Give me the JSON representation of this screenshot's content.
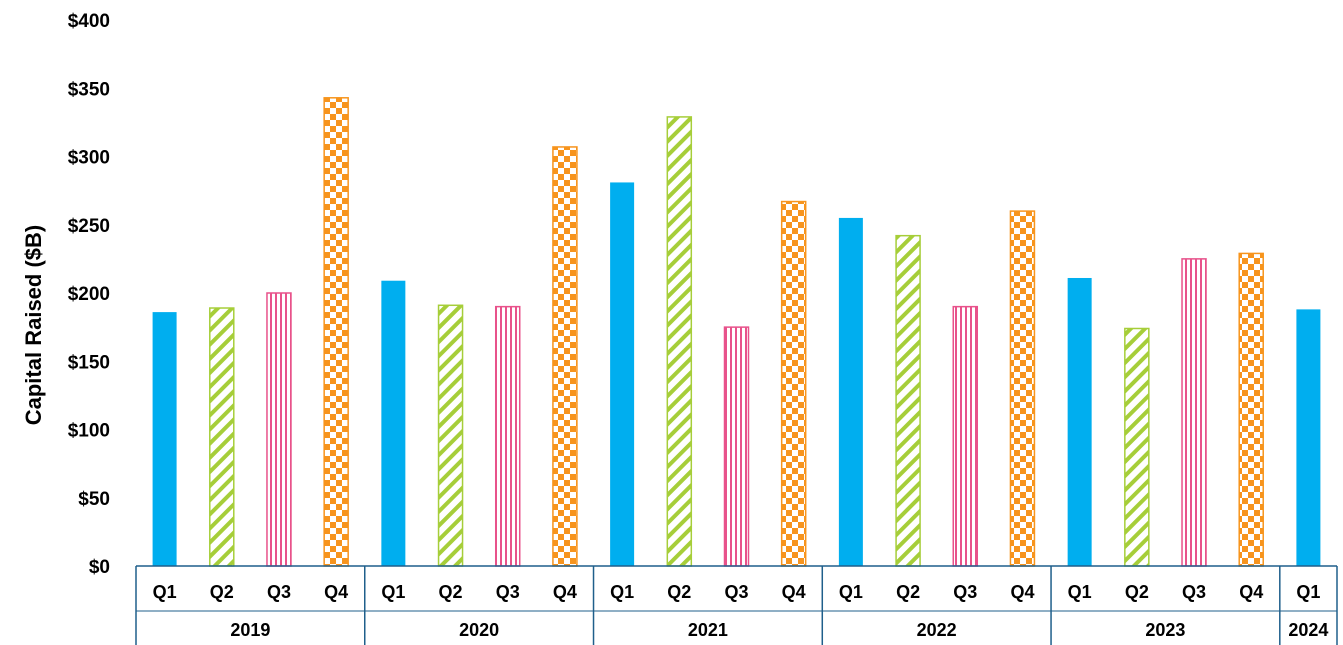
{
  "chart_data": {
    "type": "bar",
    "title": "",
    "xlabel": "",
    "ylabel": "Capital Raised ($B)",
    "ylim": [
      0,
      400
    ],
    "yticks": [
      "$0",
      "$50",
      "$100",
      "$150",
      "$200",
      "$250",
      "$300",
      "$350",
      "$400"
    ],
    "grid": false,
    "legend": "none",
    "groups": [
      {
        "label": "2019",
        "categories": [
          "Q1",
          "Q2",
          "Q3",
          "Q4"
        ],
        "values": [
          186,
          189,
          200,
          343
        ]
      },
      {
        "label": "2020",
        "categories": [
          "Q1",
          "Q2",
          "Q3",
          "Q4"
        ],
        "values": [
          209,
          191,
          190,
          307
        ]
      },
      {
        "label": "2021",
        "categories": [
          "Q1",
          "Q2",
          "Q3",
          "Q4"
        ],
        "values": [
          281,
          329,
          175,
          267
        ]
      },
      {
        "label": "2022",
        "categories": [
          "Q1",
          "Q2",
          "Q3",
          "Q4"
        ],
        "values": [
          255,
          242,
          190,
          260
        ]
      },
      {
        "label": "2023",
        "categories": [
          "Q1",
          "Q2",
          "Q3",
          "Q4"
        ],
        "values": [
          211,
          174,
          225,
          229
        ]
      },
      {
        "label": "2024",
        "categories": [
          "Q1"
        ],
        "values": [
          188
        ]
      }
    ],
    "quarter_styles": {
      "Q1": {
        "fill": "solid",
        "color": "#00AEEF"
      },
      "Q2": {
        "fill": "diagonal-stripes",
        "color": "#A6CE39"
      },
      "Q3": {
        "fill": "vertical-stripes",
        "color": "#E8528B"
      },
      "Q4": {
        "fill": "checkerboard",
        "color": "#F7941D"
      }
    },
    "axis_color": "#1F5F8B"
  }
}
